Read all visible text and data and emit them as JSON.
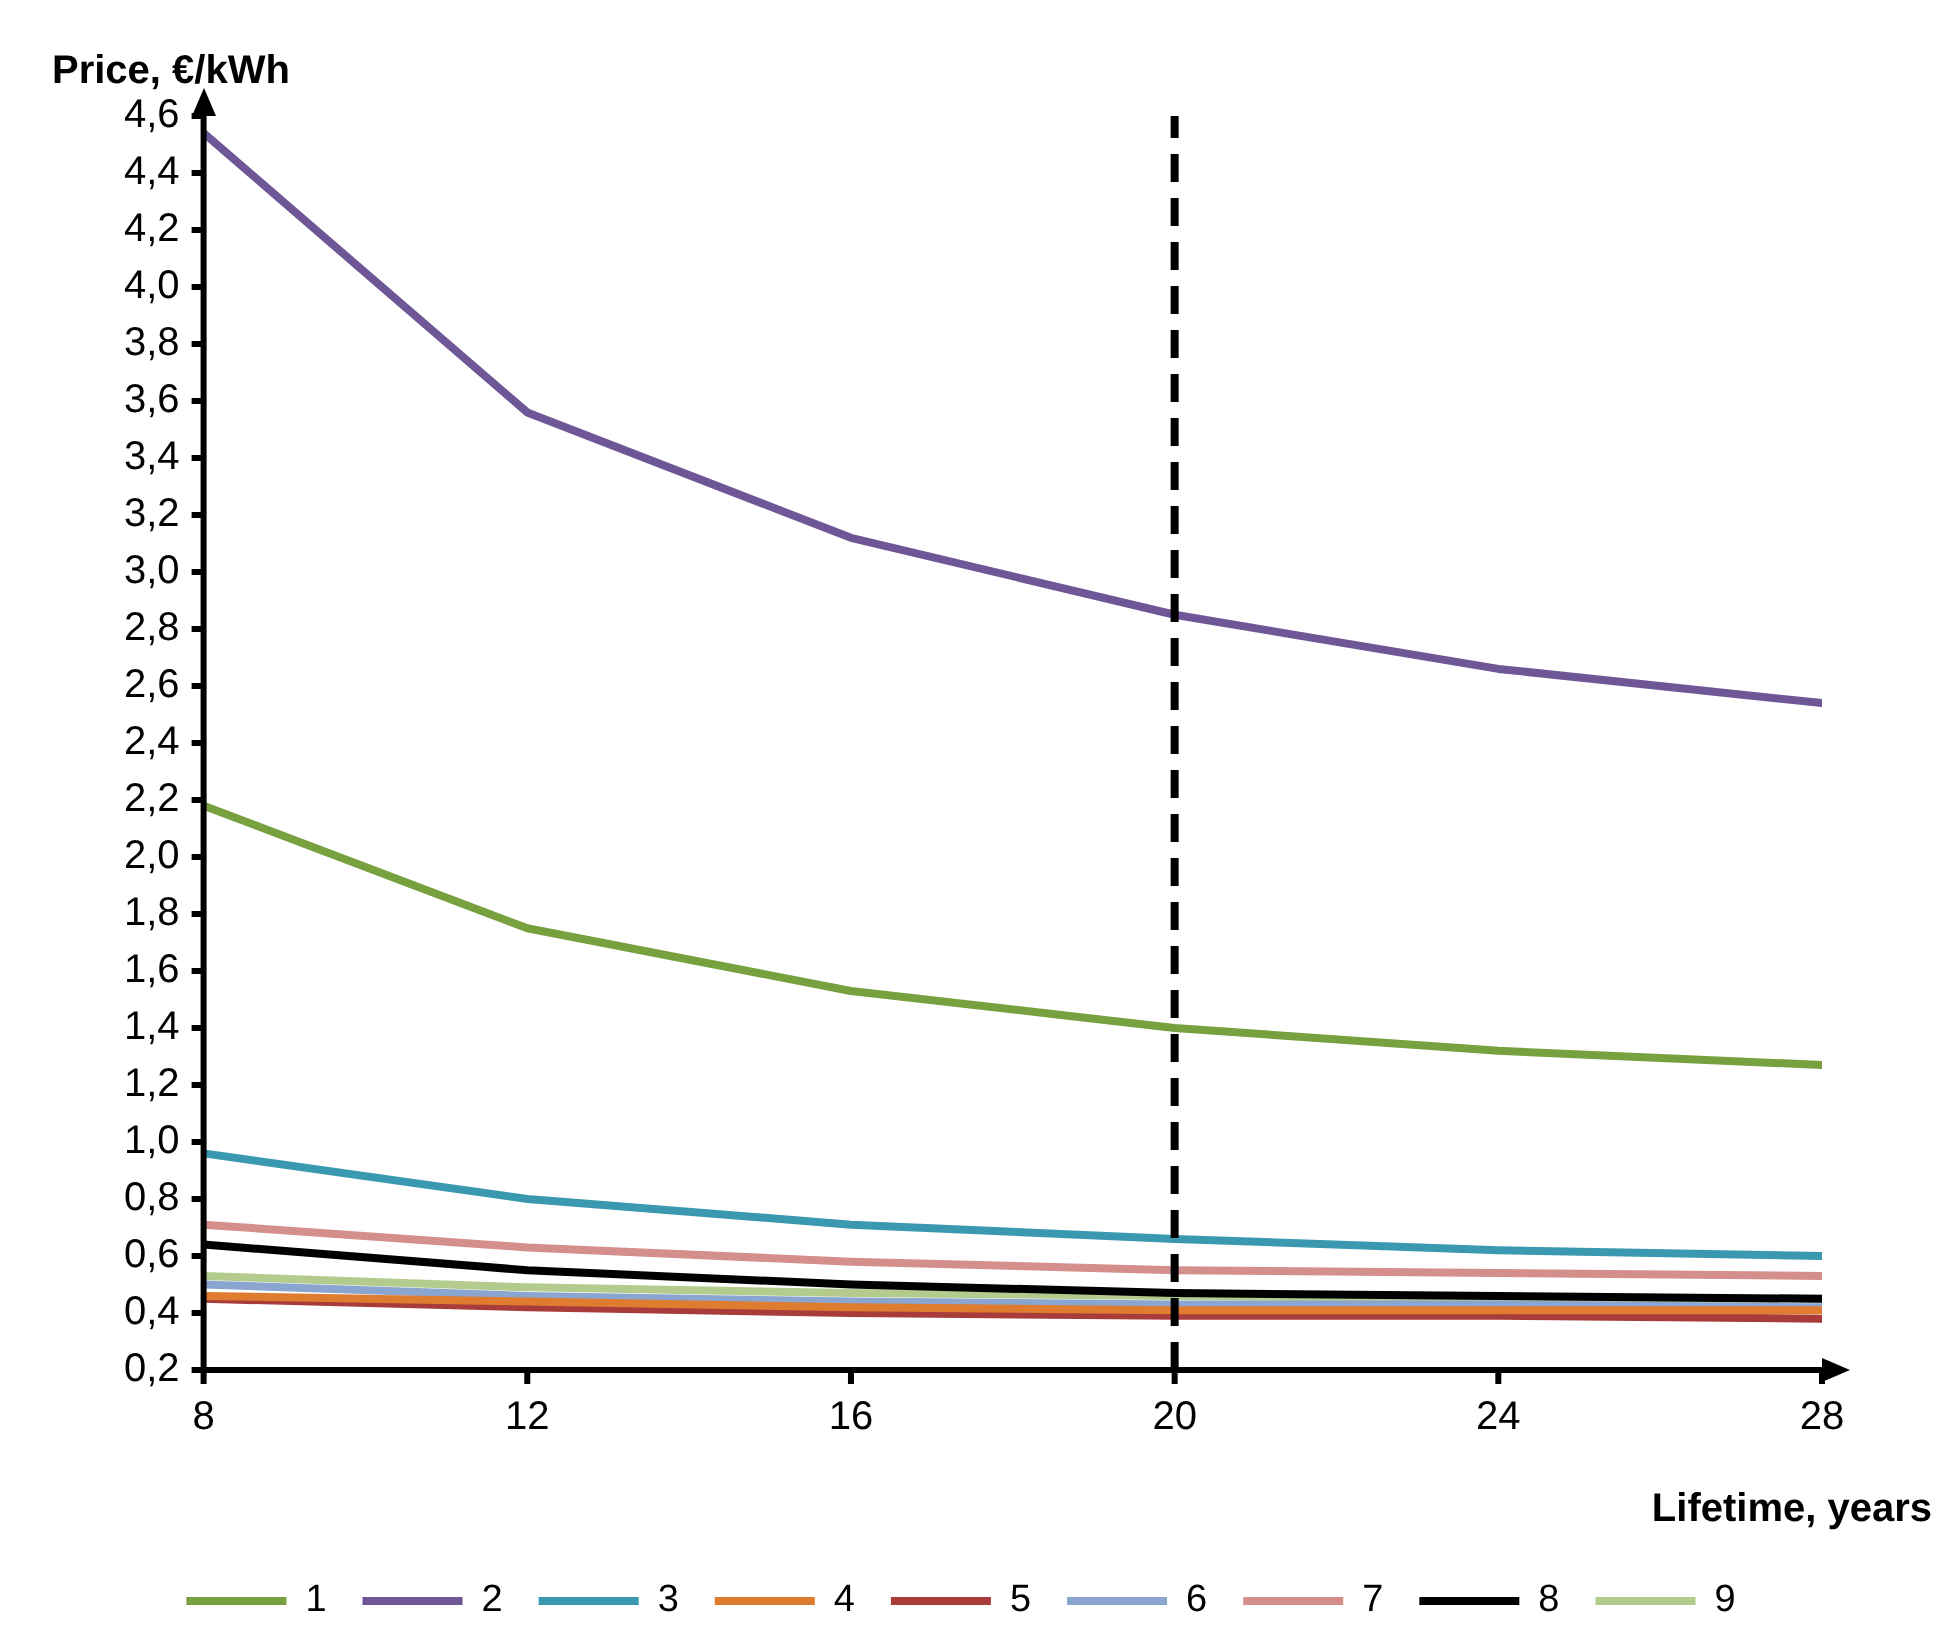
{
  "chart_data": {
    "type": "line",
    "ylabel": "Price, €/kWh",
    "xlabel": "Lifetime, years",
    "x": [
      8,
      12,
      16,
      20,
      24,
      28
    ],
    "xlim": [
      8,
      28
    ],
    "xticks": [
      8,
      12,
      16,
      20,
      24,
      28
    ],
    "ylim": [
      0.2,
      4.6
    ],
    "yticks": [
      {
        "value": 0.2,
        "label": "0,2"
      },
      {
        "value": 0.4,
        "label": "0,4"
      },
      {
        "value": 0.6,
        "label": "0,6"
      },
      {
        "value": 0.8,
        "label": "0,8"
      },
      {
        "value": 1.0,
        "label": "1,0"
      },
      {
        "value": 1.2,
        "label": "1,2"
      },
      {
        "value": 1.4,
        "label": "1,4"
      },
      {
        "value": 1.6,
        "label": "1,6"
      },
      {
        "value": 1.8,
        "label": "1,8"
      },
      {
        "value": 2.0,
        "label": "2,0"
      },
      {
        "value": 2.2,
        "label": "2,2"
      },
      {
        "value": 2.4,
        "label": "2,4"
      },
      {
        "value": 2.6,
        "label": "2,6"
      },
      {
        "value": 2.8,
        "label": "2,8"
      },
      {
        "value": 3.0,
        "label": "3,0"
      },
      {
        "value": 3.2,
        "label": "3,2"
      },
      {
        "value": 3.4,
        "label": "3,4"
      },
      {
        "value": 3.6,
        "label": "3,6"
      },
      {
        "value": 3.8,
        "label": "3,8"
      },
      {
        "value": 4.0,
        "label": "4,0"
      },
      {
        "value": 4.2,
        "label": "4,2"
      },
      {
        "value": 4.4,
        "label": "4,4"
      },
      {
        "value": 4.6,
        "label": "4,6"
      }
    ],
    "grid": false,
    "legend": "bottom",
    "marker": "none",
    "line_style": "solid",
    "ref_lines": [
      {
        "axis": "x",
        "value": 20,
        "color": "#000000",
        "line_style": "dashed"
      }
    ],
    "series": [
      {
        "name": "1",
        "color": "#77a03f",
        "values": [
          2.18,
          1.75,
          1.53,
          1.4,
          1.32,
          1.27
        ]
      },
      {
        "name": "2",
        "color": "#6e5697",
        "values": [
          4.54,
          3.56,
          3.12,
          2.85,
          2.66,
          2.54
        ]
      },
      {
        "name": "3",
        "color": "#3a98b0",
        "values": [
          0.96,
          0.8,
          0.71,
          0.66,
          0.62,
          0.6
        ]
      },
      {
        "name": "4",
        "color": "#e07c30",
        "values": [
          0.46,
          0.44,
          0.42,
          0.41,
          0.41,
          0.41
        ]
      },
      {
        "name": "5",
        "color": "#a83c3a",
        "values": [
          0.45,
          0.42,
          0.4,
          0.39,
          0.39,
          0.38
        ]
      },
      {
        "name": "6",
        "color": "#8aa6d0",
        "values": [
          0.5,
          0.46,
          0.44,
          0.43,
          0.43,
          0.42
        ]
      },
      {
        "name": "7",
        "color": "#d48e8c",
        "values": [
          0.71,
          0.63,
          0.58,
          0.55,
          0.54,
          0.53
        ]
      },
      {
        "name": "8",
        "color": "#000000",
        "values": [
          0.64,
          0.55,
          0.5,
          0.47,
          0.46,
          0.45
        ]
      },
      {
        "name": "9",
        "color": "#b3cc8e",
        "values": [
          0.53,
          0.49,
          0.47,
          0.46,
          0.45,
          0.45
        ]
      }
    ]
  }
}
